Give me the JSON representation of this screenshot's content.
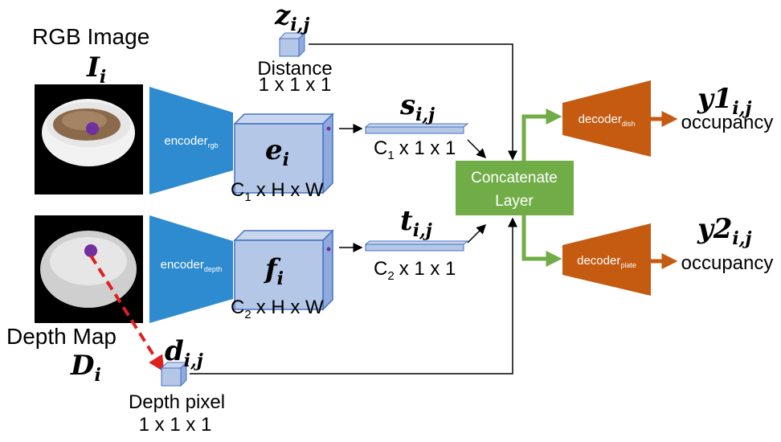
{
  "rgb_image": {
    "title": "RGB Image",
    "symbol": "I",
    "subscript": "i"
  },
  "depth_map": {
    "title": "Depth Map",
    "symbol": "D",
    "subscript": "i"
  },
  "encoders": [
    {
      "label": "encoder",
      "subscript": "rgb"
    },
    {
      "label": "encoder",
      "subscript": "depth"
    }
  ],
  "feature_maps": [
    {
      "symbol": "e",
      "subscript": "i",
      "dims": {
        "base": "C",
        "sub": "1",
        "rest": "x H x W"
      }
    },
    {
      "symbol": "f",
      "subscript": "i",
      "dims": {
        "base": "C",
        "sub": "2",
        "rest": "x H x W"
      }
    }
  ],
  "feature_vectors": [
    {
      "symbol": "s",
      "subscript": "i,j",
      "dims": {
        "base": "C",
        "sub": "1",
        "rest": "x 1 x 1"
      }
    },
    {
      "symbol": "t",
      "subscript": "i,j",
      "dims": {
        "base": "C",
        "sub": "2",
        "rest": "x 1 x 1"
      }
    }
  ],
  "distance": {
    "symbol": "z",
    "subscript": "i,j",
    "label": "Distance",
    "dims": "1 x 1 x 1"
  },
  "depth_pixel": {
    "symbol": "d",
    "subscript": "i,j",
    "label": "Depth pixel",
    "dims": "1 x 1 x 1"
  },
  "concat": {
    "lines": [
      "Concatenate",
      "Layer"
    ]
  },
  "decoders": [
    {
      "label": "decoder",
      "subscript": "dish",
      "output": {
        "symbol": "y1",
        "subscript": "i,j",
        "label": "occupancy"
      }
    },
    {
      "label": "decoder",
      "subscript": "plate",
      "output": {
        "symbol": "y2",
        "subscript": "i,j",
        "label": "occupancy"
      }
    }
  ]
}
